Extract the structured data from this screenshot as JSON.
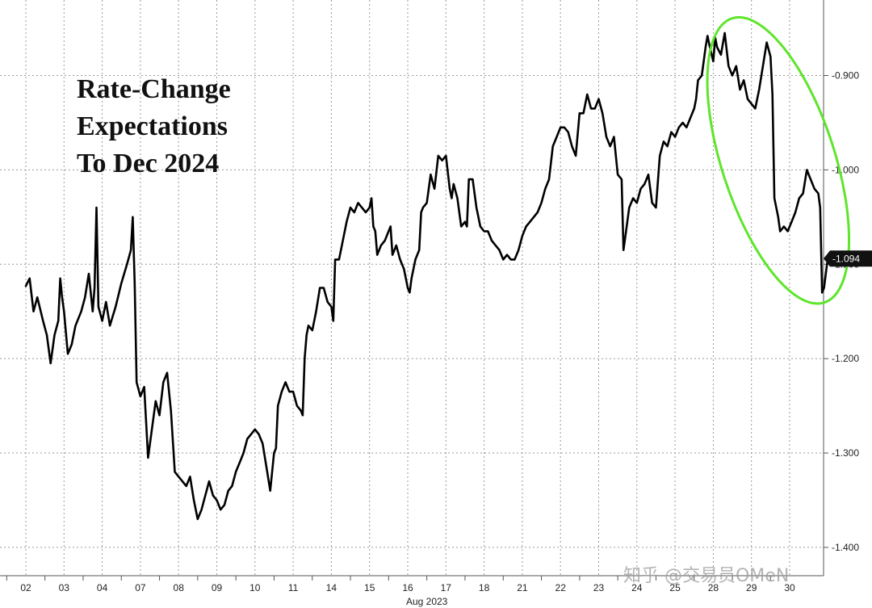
{
  "chart_data": {
    "type": "line",
    "title_lines": [
      "Rate-Change",
      "Expectations",
      "To Dec 2024"
    ],
    "xlabel": "Aug 2023",
    "x_ticks": [
      "02",
      "03",
      "04",
      "07",
      "08",
      "09",
      "10",
      "11",
      "14",
      "15",
      "16",
      "17",
      "18",
      "21",
      "22",
      "23",
      "24",
      "25",
      "28",
      "29",
      "30"
    ],
    "y_ticks": [
      "-0.900",
      "-1.000",
      "-1.100",
      "-1.200",
      "-1.300",
      "-1.400"
    ],
    "ylim": [
      -1.43,
      -0.82
    ],
    "last_value_label": "-1.094",
    "last_value": -1.094,
    "grid": true,
    "highlight": "green ellipse around 28–30",
    "line_color": "#000000",
    "highlight_color": "#5ee52c",
    "series": [
      {
        "values": [
          [
            0.0,
            -1.123
          ],
          [
            0.1,
            -1.115
          ],
          [
            0.2,
            -1.15
          ],
          [
            0.3,
            -1.135
          ],
          [
            0.45,
            -1.16
          ],
          [
            0.55,
            -1.175
          ],
          [
            0.65,
            -1.205
          ],
          [
            0.75,
            -1.175
          ],
          [
            0.85,
            -1.16
          ],
          [
            0.9,
            -1.115
          ],
          [
            0.95,
            -1.135
          ],
          [
            1.0,
            -1.15
          ],
          [
            1.1,
            -1.195
          ],
          [
            1.2,
            -1.185
          ],
          [
            1.3,
            -1.165
          ],
          [
            1.45,
            -1.15
          ],
          [
            1.55,
            -1.135
          ],
          [
            1.65,
            -1.11
          ],
          [
            1.75,
            -1.15
          ],
          [
            1.8,
            -1.125
          ],
          [
            1.85,
            -1.04
          ],
          [
            1.9,
            -1.145
          ],
          [
            2.0,
            -1.16
          ],
          [
            2.1,
            -1.14
          ],
          [
            2.2,
            -1.165
          ],
          [
            2.35,
            -1.145
          ],
          [
            2.5,
            -1.12
          ],
          [
            2.65,
            -1.1
          ],
          [
            2.75,
            -1.085
          ],
          [
            2.8,
            -1.05
          ],
          [
            2.85,
            -1.12
          ],
          [
            2.9,
            -1.225
          ],
          [
            3.0,
            -1.24
          ],
          [
            3.1,
            -1.23
          ],
          [
            3.2,
            -1.305
          ],
          [
            3.3,
            -1.275
          ],
          [
            3.4,
            -1.245
          ],
          [
            3.5,
            -1.26
          ],
          [
            3.6,
            -1.225
          ],
          [
            3.7,
            -1.215
          ],
          [
            3.8,
            -1.255
          ],
          [
            3.9,
            -1.32
          ],
          [
            4.0,
            -1.325
          ],
          [
            4.1,
            -1.33
          ],
          [
            4.2,
            -1.335
          ],
          [
            4.3,
            -1.325
          ],
          [
            4.4,
            -1.35
          ],
          [
            4.5,
            -1.37
          ],
          [
            4.6,
            -1.36
          ],
          [
            4.7,
            -1.345
          ],
          [
            4.8,
            -1.33
          ],
          [
            4.9,
            -1.345
          ],
          [
            5.0,
            -1.35
          ],
          [
            5.1,
            -1.36
          ],
          [
            5.2,
            -1.355
          ],
          [
            5.3,
            -1.34
          ],
          [
            5.4,
            -1.335
          ],
          [
            5.5,
            -1.32
          ],
          [
            5.6,
            -1.31
          ],
          [
            5.7,
            -1.3
          ],
          [
            5.8,
            -1.285
          ],
          [
            5.9,
            -1.28
          ],
          [
            6.0,
            -1.275
          ],
          [
            6.1,
            -1.28
          ],
          [
            6.2,
            -1.29
          ],
          [
            6.3,
            -1.315
          ],
          [
            6.4,
            -1.34
          ],
          [
            6.5,
            -1.3
          ],
          [
            6.55,
            -1.295
          ],
          [
            6.6,
            -1.25
          ],
          [
            6.7,
            -1.235
          ],
          [
            6.8,
            -1.225
          ],
          [
            6.9,
            -1.235
          ],
          [
            7.0,
            -1.235
          ],
          [
            7.1,
            -1.25
          ],
          [
            7.2,
            -1.255
          ],
          [
            7.25,
            -1.26
          ],
          [
            7.3,
            -1.2
          ],
          [
            7.35,
            -1.175
          ],
          [
            7.4,
            -1.165
          ],
          [
            7.5,
            -1.17
          ],
          [
            7.6,
            -1.15
          ],
          [
            7.7,
            -1.125
          ],
          [
            7.8,
            -1.125
          ],
          [
            7.9,
            -1.14
          ],
          [
            8.0,
            -1.145
          ],
          [
            8.05,
            -1.16
          ],
          [
            8.1,
            -1.095
          ],
          [
            8.2,
            -1.095
          ],
          [
            8.3,
            -1.075
          ],
          [
            8.4,
            -1.055
          ],
          [
            8.5,
            -1.04
          ],
          [
            8.6,
            -1.045
          ],
          [
            8.7,
            -1.035
          ],
          [
            8.8,
            -1.04
          ],
          [
            8.9,
            -1.045
          ],
          [
            9.0,
            -1.04
          ],
          [
            9.05,
            -1.03
          ],
          [
            9.1,
            -1.06
          ],
          [
            9.15,
            -1.065
          ],
          [
            9.2,
            -1.09
          ],
          [
            9.3,
            -1.08
          ],
          [
            9.4,
            -1.075
          ],
          [
            9.5,
            -1.065
          ],
          [
            9.55,
            -1.06
          ],
          [
            9.6,
            -1.09
          ],
          [
            9.7,
            -1.08
          ],
          [
            9.8,
            -1.095
          ],
          [
            9.9,
            -1.105
          ],
          [
            10.0,
            -1.125
          ],
          [
            10.05,
            -1.13
          ],
          [
            10.1,
            -1.115
          ],
          [
            10.2,
            -1.095
          ],
          [
            10.3,
            -1.085
          ],
          [
            10.35,
            -1.045
          ],
          [
            10.4,
            -1.04
          ],
          [
            10.5,
            -1.035
          ],
          [
            10.6,
            -1.005
          ],
          [
            10.7,
            -1.02
          ],
          [
            10.8,
            -0.985
          ],
          [
            10.9,
            -0.99
          ],
          [
            11.0,
            -0.985
          ],
          [
            11.1,
            -1.02
          ],
          [
            11.15,
            -1.03
          ],
          [
            11.2,
            -1.015
          ],
          [
            11.3,
            -1.03
          ],
          [
            11.4,
            -1.06
          ],
          [
            11.5,
            -1.055
          ],
          [
            11.55,
            -1.06
          ],
          [
            11.6,
            -1.01
          ],
          [
            11.7,
            -1.01
          ],
          [
            11.8,
            -1.04
          ],
          [
            11.9,
            -1.06
          ],
          [
            12.0,
            -1.065
          ],
          [
            12.1,
            -1.065
          ],
          [
            12.2,
            -1.075
          ],
          [
            12.3,
            -1.08
          ],
          [
            12.4,
            -1.085
          ],
          [
            12.5,
            -1.095
          ],
          [
            12.6,
            -1.09
          ],
          [
            12.7,
            -1.095
          ],
          [
            12.8,
            -1.095
          ],
          [
            12.9,
            -1.085
          ],
          [
            13.0,
            -1.07
          ],
          [
            13.1,
            -1.06
          ],
          [
            13.2,
            -1.055
          ],
          [
            13.3,
            -1.05
          ],
          [
            13.4,
            -1.045
          ],
          [
            13.5,
            -1.035
          ],
          [
            13.6,
            -1.02
          ],
          [
            13.7,
            -1.01
          ],
          [
            13.8,
            -0.975
          ],
          [
            13.9,
            -0.965
          ],
          [
            14.0,
            -0.955
          ],
          [
            14.1,
            -0.955
          ],
          [
            14.2,
            -0.96
          ],
          [
            14.3,
            -0.975
          ],
          [
            14.4,
            -0.985
          ],
          [
            14.5,
            -0.94
          ],
          [
            14.6,
            -0.94
          ],
          [
            14.7,
            -0.92
          ],
          [
            14.8,
            -0.935
          ],
          [
            14.9,
            -0.935
          ],
          [
            15.0,
            -0.925
          ],
          [
            15.1,
            -0.94
          ],
          [
            15.2,
            -0.965
          ],
          [
            15.3,
            -0.975
          ],
          [
            15.4,
            -0.965
          ],
          [
            15.5,
            -1.005
          ],
          [
            15.6,
            -1.01
          ],
          [
            15.65,
            -1.085
          ],
          [
            15.7,
            -1.07
          ],
          [
            15.8,
            -1.04
          ],
          [
            15.9,
            -1.03
          ],
          [
            16.0,
            -1.035
          ],
          [
            16.1,
            -1.02
          ],
          [
            16.2,
            -1.015
          ],
          [
            16.3,
            -1.005
          ],
          [
            16.4,
            -1.035
          ],
          [
            16.5,
            -1.04
          ],
          [
            16.6,
            -0.985
          ],
          [
            16.7,
            -0.97
          ],
          [
            16.8,
            -0.975
          ],
          [
            16.9,
            -0.96
          ],
          [
            17.0,
            -0.965
          ],
          [
            17.1,
            -0.955
          ],
          [
            17.2,
            -0.95
          ],
          [
            17.3,
            -0.955
          ],
          [
            17.4,
            -0.945
          ],
          [
            17.5,
            -0.935
          ],
          [
            17.55,
            -0.925
          ],
          [
            17.6,
            -0.905
          ],
          [
            17.7,
            -0.9
          ],
          [
            17.8,
            -0.87
          ],
          [
            17.85,
            -0.858
          ],
          [
            17.9,
            -0.868
          ],
          [
            18.0,
            -0.885
          ],
          [
            18.05,
            -0.86
          ],
          [
            18.1,
            -0.87
          ],
          [
            18.2,
            -0.878
          ],
          [
            18.3,
            -0.855
          ],
          [
            18.4,
            -0.89
          ],
          [
            18.5,
            -0.9
          ],
          [
            18.6,
            -0.89
          ],
          [
            18.7,
            -0.915
          ],
          [
            18.8,
            -0.905
          ],
          [
            18.9,
            -0.925
          ],
          [
            19.0,
            -0.93
          ],
          [
            19.1,
            -0.935
          ],
          [
            19.2,
            -0.915
          ],
          [
            19.3,
            -0.89
          ],
          [
            19.4,
            -0.865
          ],
          [
            19.5,
            -0.88
          ],
          [
            19.55,
            -0.92
          ],
          [
            19.6,
            -1.03
          ],
          [
            19.7,
            -1.05
          ],
          [
            19.75,
            -1.065
          ],
          [
            19.85,
            -1.06
          ],
          [
            19.95,
            -1.065
          ],
          [
            20.05,
            -1.055
          ],
          [
            20.15,
            -1.045
          ],
          [
            20.25,
            -1.03
          ],
          [
            20.35,
            -1.025
          ],
          [
            20.45,
            -1.0
          ],
          [
            20.55,
            -1.01
          ],
          [
            20.65,
            -1.02
          ],
          [
            20.75,
            -1.025
          ],
          [
            20.8,
            -1.04
          ],
          [
            20.85,
            -1.13
          ],
          [
            20.9,
            -1.125
          ],
          [
            21.0,
            -1.093
          ]
        ]
      }
    ]
  },
  "watermark_text": "知乎 @交易员OMeN"
}
